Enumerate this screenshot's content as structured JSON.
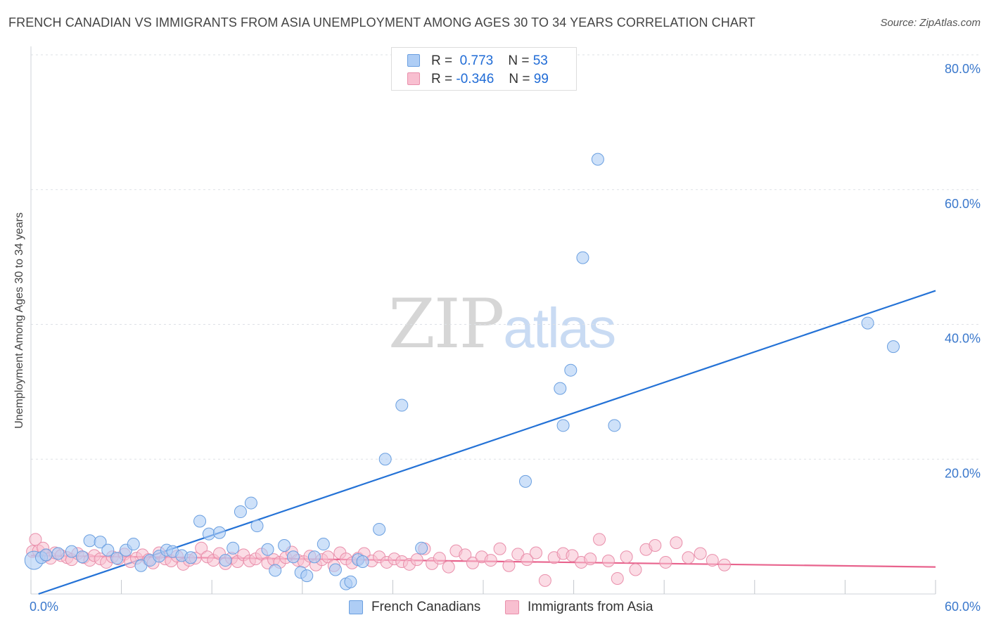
{
  "colors": {
    "series_a": "#aecdf5",
    "series_a_stroke": "#6a9fe0",
    "series_a_line": "#2472d6",
    "series_b": "#f8bfd0",
    "series_b_stroke": "#e98fab",
    "series_b_line": "#e8638d",
    "axis_text": "#3a78cc",
    "grid": "#dde1e6"
  },
  "legend": {
    "row1": {
      "r_label": "R =",
      "r_value": "0.773",
      "n_label": "N =",
      "n_value": "53"
    },
    "row2": {
      "r_label": "R =",
      "r_value": "-0.346",
      "n_label": "N =",
      "n_value": "99"
    }
  },
  "watermark": {
    "zip": "ZIP",
    "atlas": "atlas"
  },
  "chart_data": {
    "type": "scatter",
    "title": "FRENCH CANADIAN VS IMMIGRANTS FROM ASIA UNEMPLOYMENT AMONG AGES 30 TO 34 YEARS CORRELATION CHART",
    "source": "Source: ZipAtlas.com",
    "xlabel": "",
    "ylabel": "Unemployment Among Ages 30 to 34 years",
    "xlim": [
      0,
      60
    ],
    "ylim": [
      0,
      80
    ],
    "x_ticks": [
      0,
      60
    ],
    "x_tick_labels": [
      "0.0%",
      "60.0%"
    ],
    "y_ticks": [
      20,
      40,
      60,
      80
    ],
    "y_tick_labels": [
      "20.0%",
      "40.0%",
      "60.0%",
      "80.0%"
    ],
    "grid": true,
    "legend_position": "bottom",
    "series": [
      {
        "name": "French Canadians",
        "trend": {
          "x0": 0.5,
          "y0": 0.0,
          "x1": 60.0,
          "y1": 45.0
        },
        "points": [
          [
            0.2,
            5.0
          ],
          [
            0.7,
            5.4
          ],
          [
            1.0,
            5.8
          ],
          [
            1.8,
            6.0
          ],
          [
            2.7,
            6.3
          ],
          [
            3.4,
            5.5
          ],
          [
            3.9,
            7.9
          ],
          [
            4.6,
            7.7
          ],
          [
            5.1,
            6.5
          ],
          [
            5.7,
            5.3
          ],
          [
            6.3,
            6.5
          ],
          [
            6.8,
            7.4
          ],
          [
            7.3,
            4.2
          ],
          [
            7.9,
            5.0
          ],
          [
            8.5,
            5.6
          ],
          [
            9.0,
            6.5
          ],
          [
            9.4,
            6.3
          ],
          [
            10.0,
            5.7
          ],
          [
            10.6,
            5.4
          ],
          [
            11.2,
            10.8
          ],
          [
            11.8,
            8.9
          ],
          [
            12.5,
            9.1
          ],
          [
            12.9,
            5.0
          ],
          [
            13.4,
            6.8
          ],
          [
            13.9,
            12.2
          ],
          [
            14.6,
            13.5
          ],
          [
            15.0,
            10.1
          ],
          [
            15.7,
            6.6
          ],
          [
            16.2,
            3.5
          ],
          [
            16.8,
            7.2
          ],
          [
            17.4,
            5.5
          ],
          [
            17.9,
            3.2
          ],
          [
            18.3,
            2.7
          ],
          [
            18.8,
            5.5
          ],
          [
            19.4,
            7.4
          ],
          [
            20.2,
            3.6
          ],
          [
            20.9,
            1.5
          ],
          [
            21.2,
            1.8
          ],
          [
            21.7,
            5.1
          ],
          [
            22.0,
            4.8
          ],
          [
            23.1,
            9.6
          ],
          [
            23.5,
            20.0
          ],
          [
            24.6,
            28.0
          ],
          [
            25.9,
            6.8
          ],
          [
            32.8,
            16.7
          ],
          [
            35.1,
            30.5
          ],
          [
            35.3,
            25.0
          ],
          [
            35.8,
            33.2
          ],
          [
            36.6,
            49.9
          ],
          [
            37.6,
            64.5
          ],
          [
            38.7,
            25.0
          ],
          [
            55.5,
            40.2
          ],
          [
            57.2,
            36.7
          ]
        ]
      },
      {
        "name": "Immigrants from Asia",
        "trend": {
          "x0": 0.0,
          "y0": 5.7,
          "x1": 60.0,
          "y1": 4.0
        },
        "points": [
          [
            0.1,
            6.3
          ],
          [
            0.3,
            8.1
          ],
          [
            0.5,
            6.4
          ],
          [
            0.8,
            6.8
          ],
          [
            1.0,
            5.7
          ],
          [
            1.3,
            5.3
          ],
          [
            1.6,
            6.1
          ],
          [
            2.0,
            5.7
          ],
          [
            2.4,
            5.4
          ],
          [
            2.7,
            5.1
          ],
          [
            3.1,
            6.0
          ],
          [
            3.5,
            5.4
          ],
          [
            3.9,
            5.0
          ],
          [
            4.2,
            5.7
          ],
          [
            4.6,
            5.2
          ],
          [
            5.0,
            4.7
          ],
          [
            5.4,
            5.5
          ],
          [
            5.8,
            5.2
          ],
          [
            6.2,
            5.9
          ],
          [
            6.6,
            4.8
          ],
          [
            7.0,
            5.3
          ],
          [
            7.4,
            5.8
          ],
          [
            7.8,
            5.1
          ],
          [
            8.1,
            4.6
          ],
          [
            8.5,
            6.1
          ],
          [
            8.9,
            5.2
          ],
          [
            9.3,
            4.9
          ],
          [
            9.7,
            5.6
          ],
          [
            10.1,
            4.4
          ],
          [
            10.5,
            5.0
          ],
          [
            10.9,
            5.3
          ],
          [
            11.3,
            6.8
          ],
          [
            11.7,
            5.5
          ],
          [
            12.1,
            5.0
          ],
          [
            12.5,
            6.0
          ],
          [
            12.9,
            4.5
          ],
          [
            13.3,
            5.3
          ],
          [
            13.7,
            4.8
          ],
          [
            14.1,
            5.8
          ],
          [
            14.5,
            4.9
          ],
          [
            14.9,
            5.2
          ],
          [
            15.3,
            5.9
          ],
          [
            15.7,
            4.6
          ],
          [
            16.1,
            5.1
          ],
          [
            16.5,
            4.7
          ],
          [
            16.9,
            5.4
          ],
          [
            17.3,
            6.2
          ],
          [
            17.7,
            5.0
          ],
          [
            18.1,
            4.8
          ],
          [
            18.5,
            5.6
          ],
          [
            18.9,
            4.3
          ],
          [
            19.3,
            5.1
          ],
          [
            19.7,
            5.5
          ],
          [
            20.1,
            4.2
          ],
          [
            20.5,
            6.1
          ],
          [
            20.9,
            5.2
          ],
          [
            21.3,
            4.6
          ],
          [
            21.7,
            5.3
          ],
          [
            22.1,
            6.0
          ],
          [
            22.6,
            4.9
          ],
          [
            23.1,
            5.5
          ],
          [
            23.6,
            4.7
          ],
          [
            24.1,
            5.2
          ],
          [
            24.6,
            4.8
          ],
          [
            25.1,
            4.4
          ],
          [
            25.6,
            5.1
          ],
          [
            26.1,
            6.7
          ],
          [
            26.6,
            4.5
          ],
          [
            27.1,
            5.3
          ],
          [
            27.7,
            4.0
          ],
          [
            28.2,
            6.4
          ],
          [
            28.8,
            5.8
          ],
          [
            29.3,
            4.6
          ],
          [
            29.9,
            5.5
          ],
          [
            30.5,
            5.0
          ],
          [
            31.1,
            6.7
          ],
          [
            31.7,
            4.2
          ],
          [
            32.3,
            5.9
          ],
          [
            32.9,
            5.1
          ],
          [
            33.5,
            6.1
          ],
          [
            34.1,
            2.0
          ],
          [
            34.7,
            5.4
          ],
          [
            35.3,
            6.0
          ],
          [
            35.9,
            5.7
          ],
          [
            36.5,
            4.7
          ],
          [
            37.1,
            5.2
          ],
          [
            37.7,
            8.1
          ],
          [
            38.3,
            4.9
          ],
          [
            38.9,
            2.3
          ],
          [
            39.5,
            5.5
          ],
          [
            40.1,
            3.6
          ],
          [
            40.8,
            6.6
          ],
          [
            41.4,
            7.2
          ],
          [
            42.1,
            4.7
          ],
          [
            42.8,
            7.6
          ],
          [
            43.6,
            5.4
          ],
          [
            44.4,
            6.0
          ],
          [
            45.2,
            5.0
          ],
          [
            46.0,
            4.3
          ]
        ]
      }
    ]
  },
  "legend_bottom": {
    "label_a": "French Canadians",
    "label_b": "Immigrants from Asia"
  }
}
